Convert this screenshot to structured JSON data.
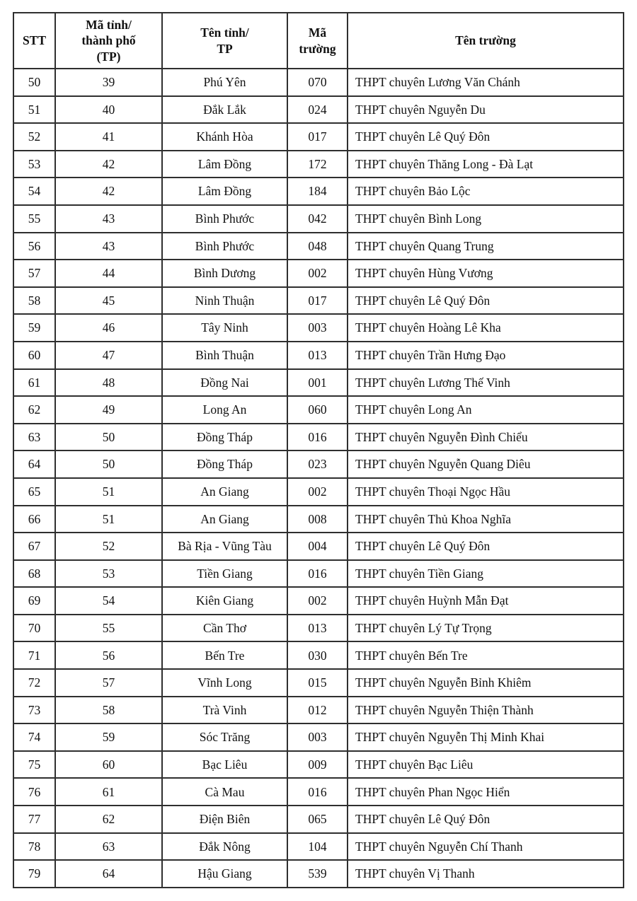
{
  "table": {
    "headers": [
      "STT",
      "Mã tỉnh/\nthành phố\n(TP)",
      "Tên tỉnh/\nTP",
      "Mã\ntrường",
      "Tên trường"
    ],
    "rows": [
      {
        "stt": "50",
        "province_code": "39",
        "province": "Phú Yên",
        "school_code": "070",
        "school": "THPT chuyên Lương Văn Chánh"
      },
      {
        "stt": "51",
        "province_code": "40",
        "province": "Đắk Lắk",
        "school_code": "024",
        "school": "THPT chuyên Nguyễn Du"
      },
      {
        "stt": "52",
        "province_code": "41",
        "province": "Khánh Hòa",
        "school_code": "017",
        "school": "THPT chuyên Lê Quý Đôn"
      },
      {
        "stt": "53",
        "province_code": "42",
        "province": "Lâm Đồng",
        "school_code": "172",
        "school": "THPT chuyên Thăng Long - Đà Lạt"
      },
      {
        "stt": "54",
        "province_code": "42",
        "province": "Lâm Đồng",
        "school_code": "184",
        "school": "THPT chuyên Bảo Lộc"
      },
      {
        "stt": "55",
        "province_code": "43",
        "province": "Bình Phước",
        "school_code": "042",
        "school": "THPT chuyên Bình Long"
      },
      {
        "stt": "56",
        "province_code": "43",
        "province": "Bình Phước",
        "school_code": "048",
        "school": "THPT chuyên Quang Trung"
      },
      {
        "stt": "57",
        "province_code": "44",
        "province": "Bình Dương",
        "school_code": "002",
        "school": "THPT chuyên Hùng Vương"
      },
      {
        "stt": "58",
        "province_code": "45",
        "province": "Ninh Thuận",
        "school_code": "017",
        "school": "THPT chuyên Lê Quý Đôn"
      },
      {
        "stt": "59",
        "province_code": "46",
        "province": "Tây Ninh",
        "school_code": "003",
        "school": "THPT chuyên Hoàng Lê Kha"
      },
      {
        "stt": "60",
        "province_code": "47",
        "province": "Bình Thuận",
        "school_code": "013",
        "school": "THPT chuyên Trần Hưng Đạo"
      },
      {
        "stt": "61",
        "province_code": "48",
        "province": "Đồng Nai",
        "school_code": "001",
        "school": "THPT chuyên Lương Thế Vinh"
      },
      {
        "stt": "62",
        "province_code": "49",
        "province": "Long An",
        "school_code": "060",
        "school": "THPT chuyên Long An"
      },
      {
        "stt": "63",
        "province_code": "50",
        "province": "Đồng Tháp",
        "school_code": "016",
        "school": "THPT chuyên Nguyễn Đình Chiểu"
      },
      {
        "stt": "64",
        "province_code": "50",
        "province": "Đồng Tháp",
        "school_code": "023",
        "school": "THPT chuyên Nguyễn Quang Diêu"
      },
      {
        "stt": "65",
        "province_code": "51",
        "province": "An Giang",
        "school_code": "002",
        "school": "THPT chuyên Thoại Ngọc Hầu"
      },
      {
        "stt": "66",
        "province_code": "51",
        "province": "An Giang",
        "school_code": "008",
        "school": "THPT chuyên Thủ Khoa Nghĩa"
      },
      {
        "stt": "67",
        "province_code": "52",
        "province": "Bà Rịa - Vũng Tàu",
        "school_code": "004",
        "school": "THPT chuyên Lê Quý Đôn"
      },
      {
        "stt": "68",
        "province_code": "53",
        "province": "Tiền Giang",
        "school_code": "016",
        "school": "THPT chuyên Tiền Giang"
      },
      {
        "stt": "69",
        "province_code": "54",
        "province": "Kiên Giang",
        "school_code": "002",
        "school": "THPT chuyên Huỳnh Mẫn Đạt"
      },
      {
        "stt": "70",
        "province_code": "55",
        "province": "Cần Thơ",
        "school_code": "013",
        "school": "THPT chuyên Lý Tự Trọng"
      },
      {
        "stt": "71",
        "province_code": "56",
        "province": "Bến Tre",
        "school_code": "030",
        "school": "THPT chuyên Bến Tre"
      },
      {
        "stt": "72",
        "province_code": "57",
        "province": "Vĩnh Long",
        "school_code": "015",
        "school": "THPT chuyên Nguyễn Bỉnh Khiêm"
      },
      {
        "stt": "73",
        "province_code": "58",
        "province": "Trà Vinh",
        "school_code": "012",
        "school": "THPT chuyên Nguyễn Thiện Thành"
      },
      {
        "stt": "74",
        "province_code": "59",
        "province": "Sóc Trăng",
        "school_code": "003",
        "school": "THPT chuyên Nguyễn Thị Minh Khai"
      },
      {
        "stt": "75",
        "province_code": "60",
        "province": "Bạc Liêu",
        "school_code": "009",
        "school": "THPT chuyên Bạc Liêu"
      },
      {
        "stt": "76",
        "province_code": "61",
        "province": "Cà Mau",
        "school_code": "016",
        "school": "THPT chuyên Phan Ngọc Hiển"
      },
      {
        "stt": "77",
        "province_code": "62",
        "province": "Điện Biên",
        "school_code": "065",
        "school": "THPT chuyên Lê Quý Đôn"
      },
      {
        "stt": "78",
        "province_code": "63",
        "province": "Đắk Nông",
        "school_code": "104",
        "school": "THPT chuyên Nguyễn Chí Thanh"
      },
      {
        "stt": "79",
        "province_code": "64",
        "province": "Hậu Giang",
        "school_code": "539",
        "school": "THPT chuyên Vị Thanh"
      }
    ]
  }
}
